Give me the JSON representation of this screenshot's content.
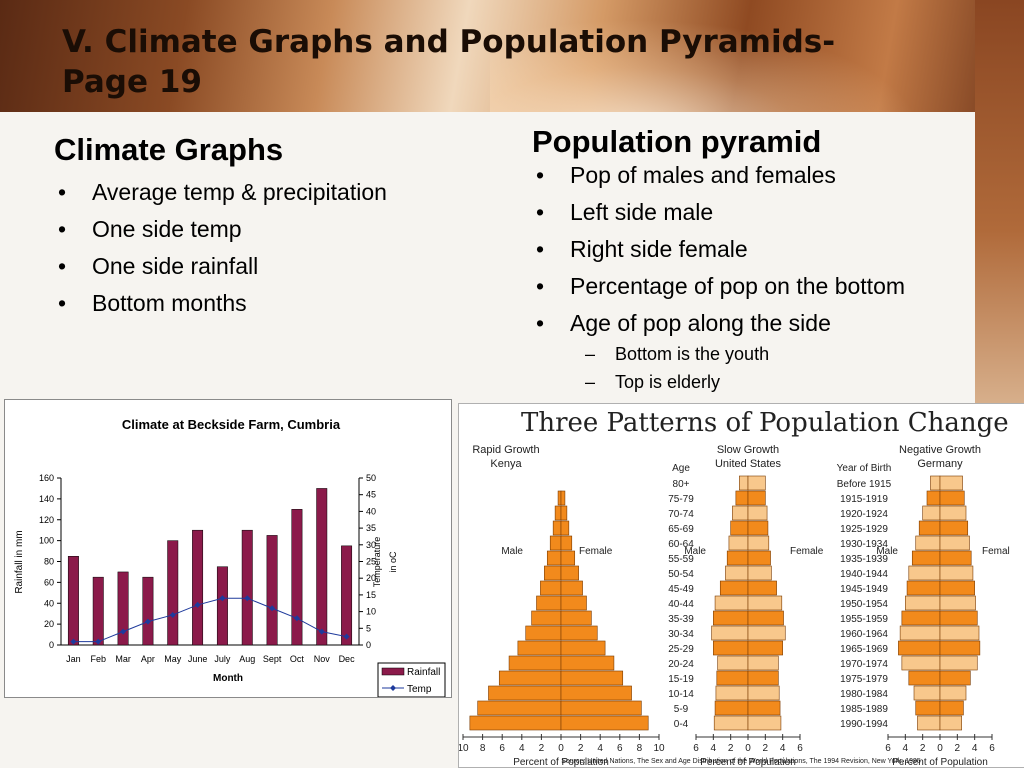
{
  "slide": {
    "title_line1": "V. Climate Graphs and Population Pyramids-",
    "title_line2": "Page 19"
  },
  "left": {
    "heading": "Climate  Graphs",
    "bullets": [
      "Average temp & precipitation",
      "One side temp",
      "One side rainfall",
      "Bottom months"
    ]
  },
  "right": {
    "heading": "Population pyramid",
    "bullets": [
      "Pop of males and females",
      "Left side male",
      "Right side female",
      "Percentage of pop on the bottom",
      "Age of pop along the side"
    ],
    "sub_bullets": [
      "Bottom is the youth",
      "Top is elderly"
    ]
  },
  "chart_data": [
    {
      "type": "bar",
      "title": "Climate at Beckside Farm, Cumbria",
      "xlabel": "Month",
      "ylabel": "Rainfall in mm",
      "y2label_line1": "Temperature",
      "y2label_line2": "in oC",
      "categories": [
        "Jan",
        "Feb",
        "Mar",
        "Apr",
        "May",
        "June",
        "July",
        "Aug",
        "Sept",
        "Oct",
        "Nov",
        "Dec"
      ],
      "ylim": [
        0,
        160
      ],
      "y_ticks": [
        "0",
        "20",
        "40",
        "60",
        "80",
        "100",
        "120",
        "140",
        "160"
      ],
      "y2lim": [
        0,
        50
      ],
      "y2_ticks": [
        "0",
        "5",
        "10",
        "15",
        "20",
        "25",
        "30",
        "35",
        "40",
        "45",
        "50"
      ],
      "series": [
        {
          "name": "Rainfall",
          "type": "bar",
          "color": "#8b1a4a",
          "values": [
            85,
            65,
            70,
            65,
            100,
            110,
            75,
            110,
            105,
            130,
            150,
            95
          ]
        },
        {
          "name": "Temp",
          "type": "line",
          "color": "#1e3a9c",
          "axis": "right",
          "values": [
            1,
            1,
            4,
            7,
            9,
            12,
            14,
            14,
            11,
            8,
            4,
            2.5
          ]
        }
      ],
      "legend": "bottom-right"
    },
    {
      "type": "population-pyramid",
      "title": "Three Patterns of Population Change",
      "color_dark": "#f28a1c",
      "color_light": "#f8c88c",
      "age_header": [
        "Age",
        "80+"
      ],
      "year_header": [
        "Year of Birth",
        "Before 1915"
      ],
      "ages": [
        "75-79",
        "70-74",
        "65-69",
        "60-64",
        "55-59",
        "50-54",
        "45-49",
        "40-44",
        "35-39",
        "30-34",
        "25-29",
        "20-24",
        "15-19",
        "10-14",
        "5-9",
        "0-4"
      ],
      "birth_years": [
        "1915-1919",
        "1920-1924",
        "1925-1929",
        "1930-1934",
        "1935-1939",
        "1940-1944",
        "1945-1949",
        "1950-1954",
        "1955-1959",
        "1960-1964",
        "1965-1969",
        "1970-1974",
        "1975-1979",
        "1980-1984",
        "1985-1989",
        "1990-1994"
      ],
      "male_label": "Male",
      "female_label": "Female",
      "female_label_short": "Femal",
      "axis_label": "Percent of Population",
      "source": "Source: United Nations, The Sex and Age Distribution of the World Populations, The 1994 Revision, New York, 1995",
      "panels": [
        {
          "label_line1": "Rapid Growth",
          "label_line2": "Kenya",
          "ticks": [
            "10",
            "8",
            "6",
            "4",
            "2",
            "0",
            "2",
            "4",
            "6",
            "8",
            "10"
          ],
          "axis_max": 10,
          "male_pct": [
            0.3,
            0.6,
            0.8,
            1.1,
            1.4,
            1.7,
            2.1,
            2.5,
            3.0,
            3.6,
            4.4,
            5.3,
            6.3,
            7.4,
            8.5,
            9.3
          ],
          "female_pct": [
            0.4,
            0.6,
            0.8,
            1.1,
            1.4,
            1.8,
            2.2,
            2.6,
            3.1,
            3.7,
            4.5,
            5.4,
            6.3,
            7.2,
            8.2,
            8.9
          ]
        },
        {
          "label_line1": "Slow Growth",
          "label_line2": "United States",
          "ticks": [
            "6",
            "4",
            "2",
            "0",
            "2",
            "4",
            "6"
          ],
          "axis_max": 6,
          "male_pct": [
            1.0,
            1.4,
            1.8,
            2.0,
            2.2,
            2.4,
            2.6,
            3.2,
            3.8,
            4.0,
            4.2,
            4.0,
            3.5,
            3.6,
            3.7,
            3.8,
            3.9
          ],
          "female_pct": [
            2.0,
            2.0,
            2.2,
            2.3,
            2.4,
            2.6,
            2.7,
            3.3,
            3.9,
            4.1,
            4.3,
            4.0,
            3.5,
            3.5,
            3.6,
            3.7,
            3.8
          ]
        },
        {
          "label_line1": "Negative Growth",
          "label_line2": "Germany",
          "ticks": [
            "6",
            "4",
            "2",
            "0",
            "2",
            "4",
            "6"
          ],
          "axis_max": 6,
          "male_pct": [
            1.1,
            1.5,
            2.0,
            2.4,
            2.8,
            3.2,
            3.6,
            3.8,
            4.0,
            4.4,
            4.6,
            4.8,
            4.4,
            3.6,
            3.0,
            2.8,
            2.6
          ],
          "female_pct": [
            2.6,
            2.8,
            3.0,
            3.2,
            3.4,
            3.6,
            3.8,
            4.0,
            4.1,
            4.3,
            4.5,
            4.6,
            4.3,
            3.5,
            3.0,
            2.7,
            2.5
          ]
        }
      ]
    }
  ]
}
